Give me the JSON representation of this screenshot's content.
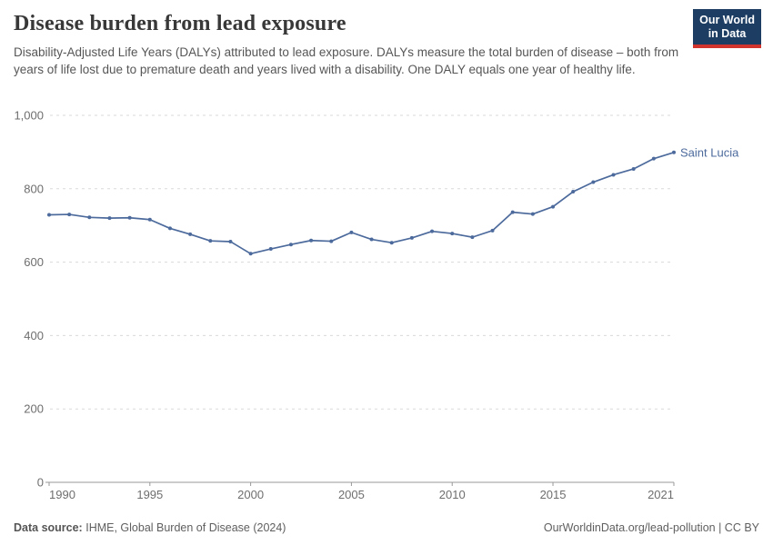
{
  "header": {
    "title": "Disease burden from lead exposure",
    "subtitle": "Disability-Adjusted Life Years (DALYs) attributed to lead exposure. DALYs measure the total burden of disease – both from years of life lost due to premature death and years lived with a disability. One DALY equals one year of healthy life."
  },
  "logo": {
    "line1": "Our World",
    "line2": "in Data",
    "bg_color": "#1d3d63",
    "stripe_color": "#d0342c"
  },
  "chart_data": {
    "type": "line",
    "title": "Disease burden from lead exposure",
    "xlabel": "",
    "ylabel": "",
    "xlim": [
      1990,
      2021
    ],
    "ylim": [
      0,
      1000
    ],
    "grid": "horizontal-dashed",
    "legend_position": "end-of-line-label",
    "x": [
      1990,
      1991,
      1992,
      1993,
      1994,
      1995,
      1996,
      1997,
      1998,
      1999,
      2000,
      2001,
      2002,
      2003,
      2004,
      2005,
      2006,
      2007,
      2008,
      2009,
      2010,
      2011,
      2012,
      2013,
      2014,
      2015,
      2016,
      2017,
      2018,
      2019,
      2020,
      2021
    ],
    "series": [
      {
        "name": "Saint Lucia",
        "color": "#4C6A9C",
        "values": [
          729,
          730,
          722,
          720,
          721,
          716,
          692,
          676,
          658,
          656,
          623,
          636,
          648,
          659,
          657,
          681,
          662,
          653,
          666,
          684,
          678,
          668,
          686,
          736,
          731,
          751,
          792,
          818,
          838,
          854,
          882,
          899
        ]
      }
    ],
    "y_ticks": [
      {
        "v": 0,
        "label": "0"
      },
      {
        "v": 200,
        "label": "200"
      },
      {
        "v": 400,
        "label": "400"
      },
      {
        "v": 600,
        "label": "600"
      },
      {
        "v": 800,
        "label": "800"
      },
      {
        "v": 1000,
        "label": "1,000"
      }
    ],
    "x_ticks": [
      {
        "v": 1990,
        "label": "1990",
        "align": "start"
      },
      {
        "v": 1995,
        "label": "1995",
        "align": "middle"
      },
      {
        "v": 2000,
        "label": "2000",
        "align": "middle"
      },
      {
        "v": 2005,
        "label": "2005",
        "align": "middle"
      },
      {
        "v": 2010,
        "label": "2010",
        "align": "middle"
      },
      {
        "v": 2015,
        "label": "2015",
        "align": "middle"
      },
      {
        "v": 2021,
        "label": "2021",
        "align": "end"
      }
    ]
  },
  "colors": {
    "line": "#4C6A9C",
    "grid": "#dadada",
    "axis": "#999999",
    "tick_text": "#6e6e6e",
    "series_label": "#4C6A9C"
  },
  "footer": {
    "source_label": "Data source:",
    "source_value": "IHME, Global Burden of Disease (2024)",
    "link": "OurWorldinData.org/lead-pollution | CC BY"
  }
}
